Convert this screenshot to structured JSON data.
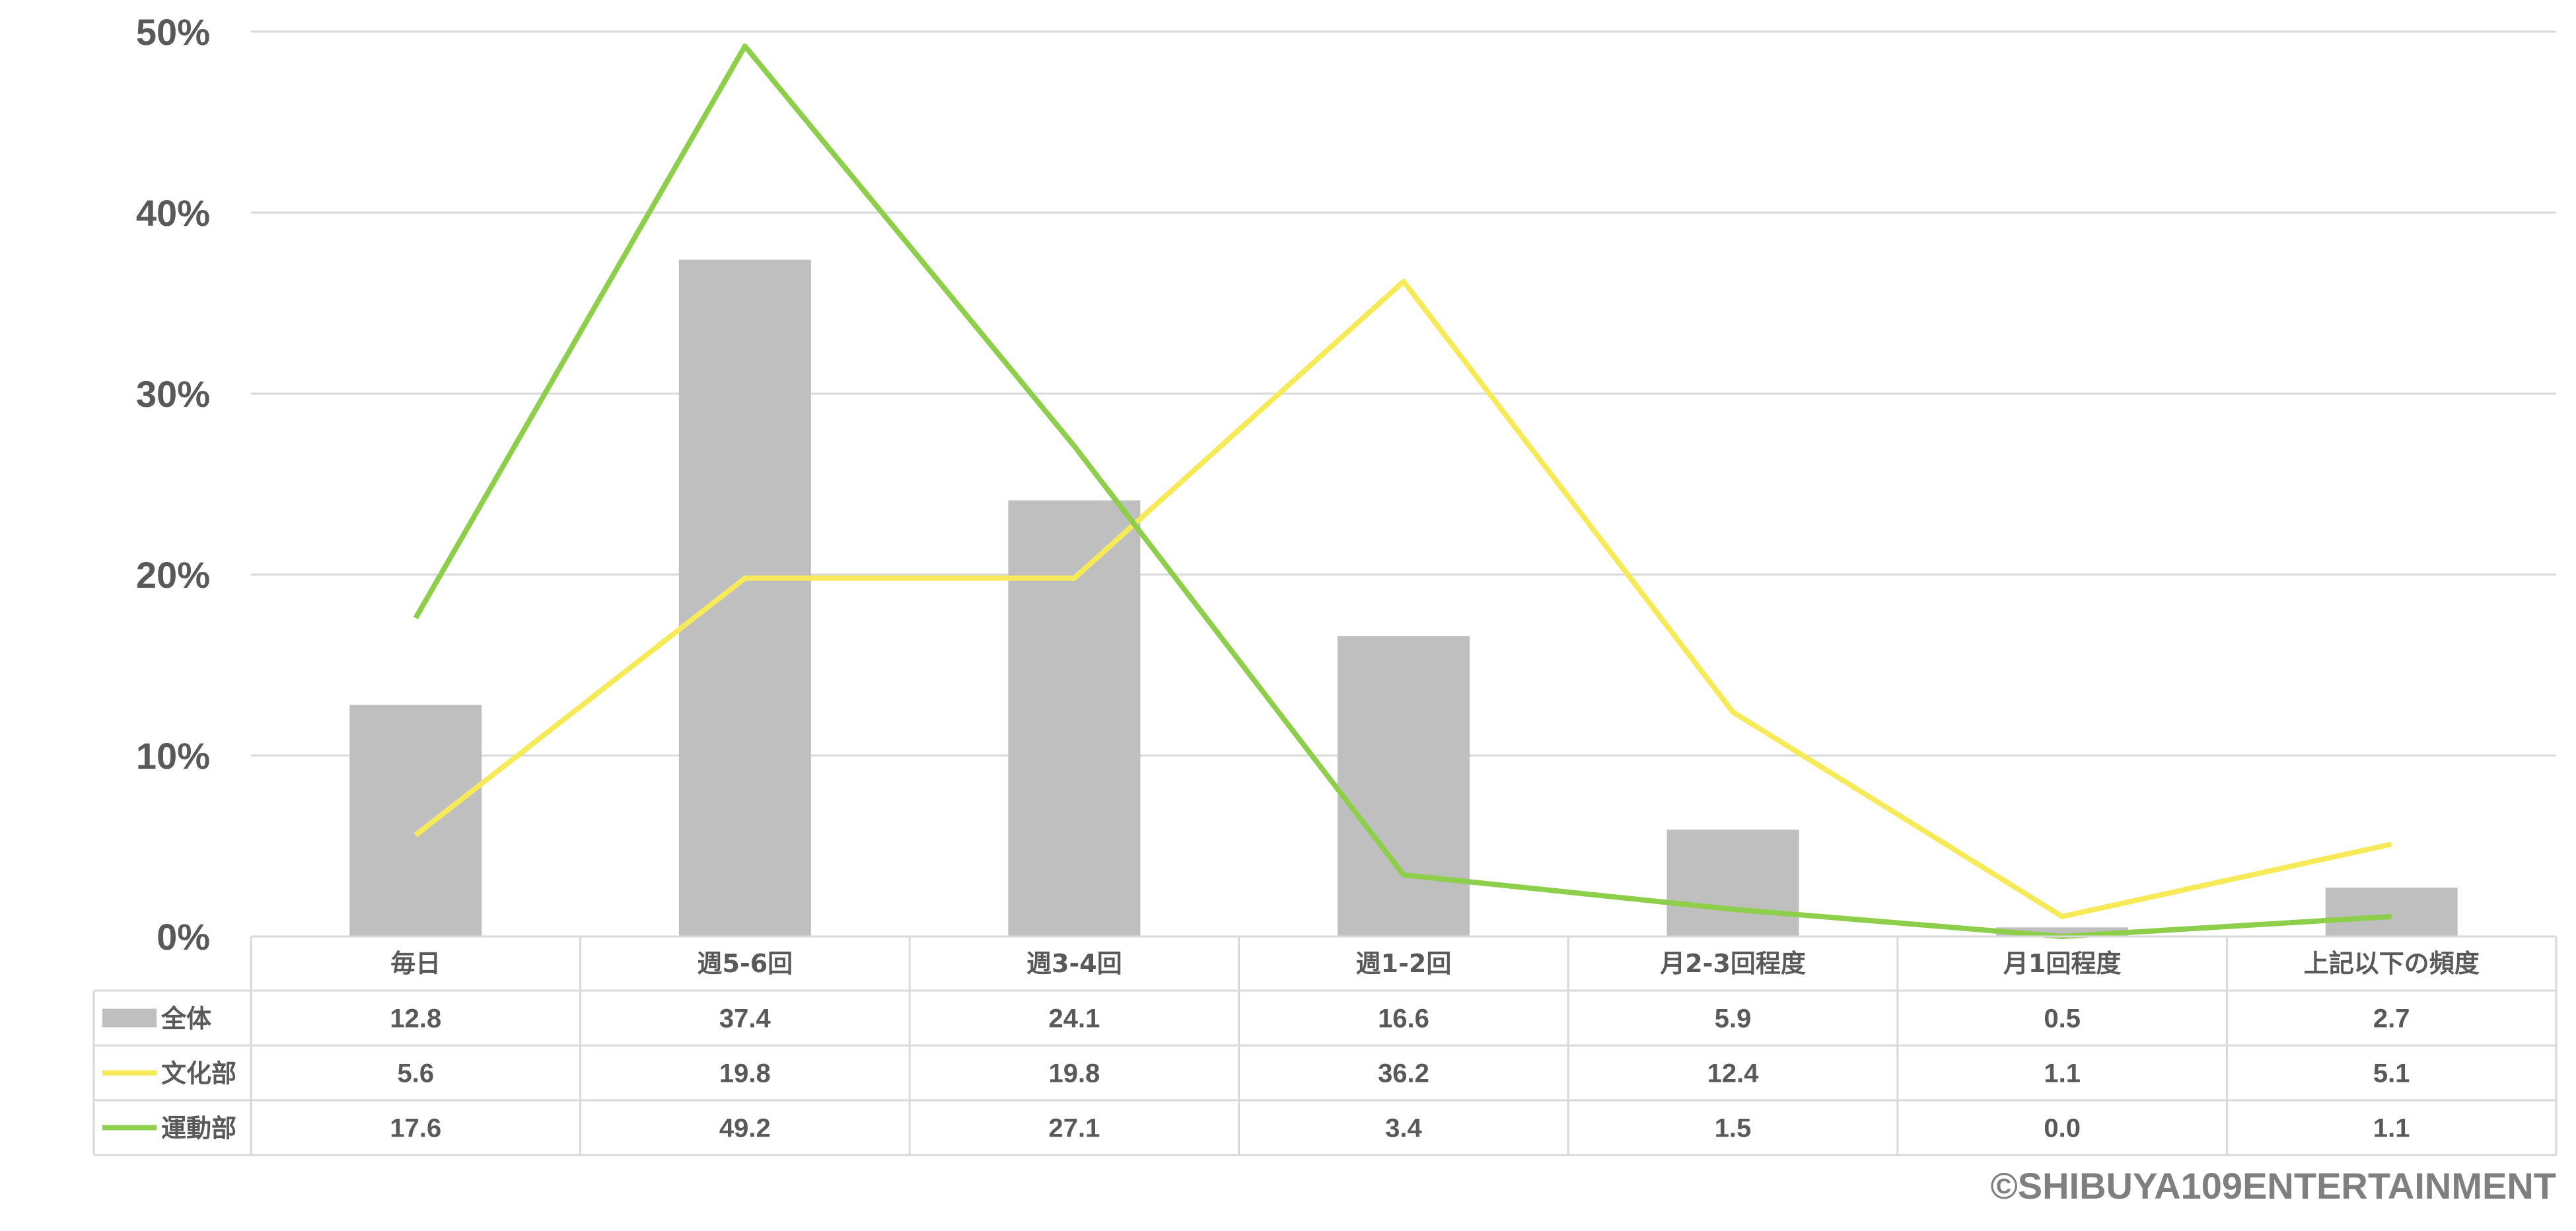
{
  "chart_data": {
    "type": "bar",
    "categories": [
      "毎日",
      "週5-6回",
      "週3-4回",
      "週1-2回",
      "月2-3回程度",
      "月1回程度",
      "上記以下の頻度"
    ],
    "series": [
      {
        "name": "全体",
        "kind": "bar",
        "color": "#bfbfbf",
        "values": [
          12.8,
          37.4,
          24.1,
          16.6,
          5.9,
          0.5,
          2.7
        ]
      },
      {
        "name": "文化部",
        "kind": "line",
        "color": "#f6ea59",
        "values": [
          5.6,
          19.8,
          19.8,
          36.2,
          12.4,
          1.1,
          5.1
        ]
      },
      {
        "name": "運動部",
        "kind": "line",
        "color": "#8dcf4a",
        "values": [
          17.6,
          49.2,
          27.1,
          3.4,
          1.5,
          0.0,
          1.1
        ]
      }
    ],
    "yticks": [
      "0%",
      "10%",
      "20%",
      "30%",
      "40%",
      "50%"
    ],
    "ylim": [
      0,
      50
    ],
    "grid": true,
    "legend": "data-table"
  },
  "footer": {
    "copyright": "©SHIBUYA109ENTERTAINMENT"
  }
}
